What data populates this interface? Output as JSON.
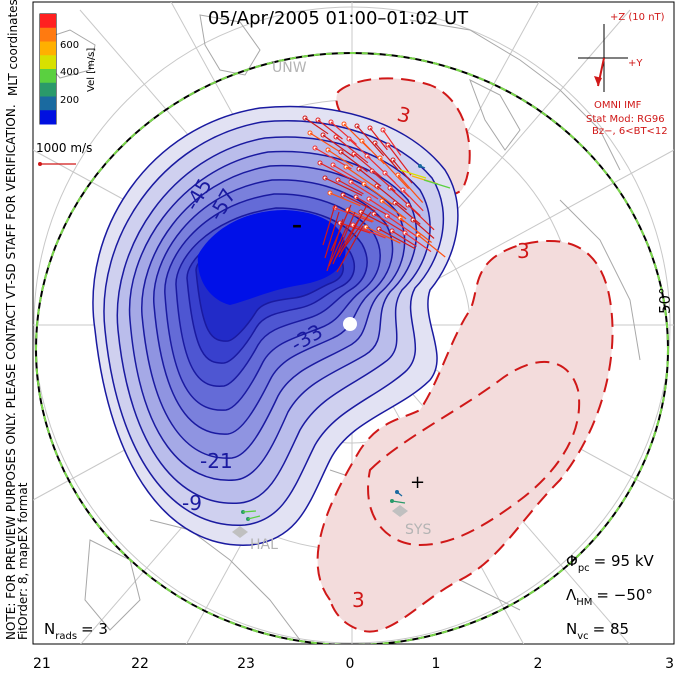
{
  "title": "05/Apr/2005 01:00–01:02 UT",
  "colorbar": {
    "axis_label": "Vel [m/s]",
    "ticks": [
      "600",
      "400",
      "200"
    ],
    "colors": [
      "#ff2020",
      "#ff7a10",
      "#ffb000",
      "#d8e000",
      "#5ad040",
      "#2a9a6a",
      "#1a6aa0",
      "#0010e0"
    ]
  },
  "mlt_label": "MLT coordinates",
  "reference_vector": "1000 m/s",
  "side_note_1": "NOTE: FOR PREVIEW PURPOSES ONLY. PLEASE CONTACT VT-SD STAFF FOR VERIFICATION.",
  "side_note_2": "FitOrder: 8,  mapEX format",
  "stations": [
    "UNW",
    "HAL",
    "SYS"
  ],
  "latitude_label": "50°",
  "imf": {
    "z_label": "+Z (10 nT)",
    "y_label": "+Y",
    "source": "OMNI IMF",
    "model_line1": "Stat Mod: RG96",
    "model_line2": "Bz−, 6<BT<12"
  },
  "contour_labels": [
    "-45",
    "-57",
    "-33",
    "-21",
    "-9",
    "3",
    "3",
    "3"
  ],
  "stats": {
    "phi_pc_label": "Φ",
    "phi_pc_sub": "pc",
    "phi_pc_value": "=  95 kV",
    "lambda_label": "Λ",
    "lambda_sub": "HM",
    "lambda_value": "=  −50°",
    "nvc_label": "N",
    "nvc_sub": "vc",
    "nvc_value": "=  85",
    "nrads_label": "N",
    "nrads_sub": "rads",
    "nrads_value": "=  3"
  },
  "mlt_axis": [
    "21",
    "22",
    "23",
    "0",
    "1",
    "2",
    "3"
  ],
  "colors": {
    "negative_fill": "#0010e8",
    "positive_fill": "#f3dcdc",
    "negative_line": "#1a1aa0",
    "positive_line": "#d01818",
    "boundary": "#7ad84a"
  }
}
